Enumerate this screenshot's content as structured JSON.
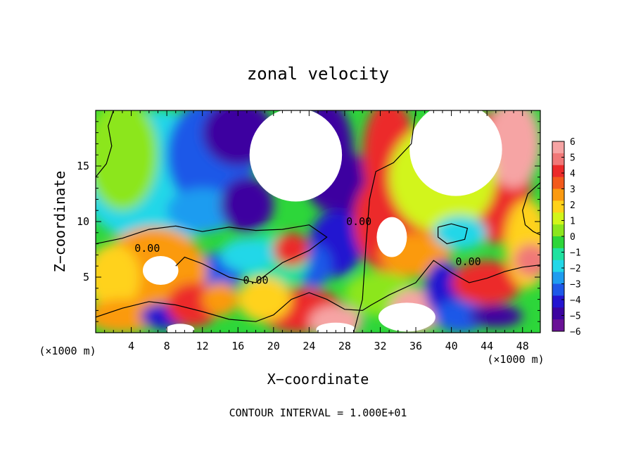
{
  "chart_data": {
    "type": "heatmap",
    "title": "zonal velocity",
    "xlabel": "X−coordinate",
    "ylabel": "Z−coordinate",
    "x_multiplier": "(×1000 m)",
    "x_multiplier_right": "(×1000 m)",
    "footer": "CONTOUR INTERVAL = 1.000E+01",
    "xlim": [
      0,
      50
    ],
    "ylim": [
      0,
      20
    ],
    "xticks": [
      4,
      8,
      12,
      16,
      20,
      24,
      28,
      32,
      36,
      40,
      44,
      48
    ],
    "xtick_labels": [
      "4",
      "8",
      "12",
      "16",
      "20",
      "24",
      "28",
      "32",
      "36",
      "40",
      "44",
      "48"
    ],
    "yticks": [
      5,
      10,
      15
    ],
    "ytick_labels": [
      "5",
      "10",
      "15"
    ],
    "colorbar": {
      "min": -6,
      "max": 6,
      "ticks": [
        6,
        5,
        4,
        3,
        2,
        1,
        0,
        -1,
        -2,
        -3,
        -4,
        -5,
        -6
      ],
      "tick_labels": [
        "6",
        "5",
        "4",
        "3",
        "2",
        "1",
        "0",
        "−1",
        "−2",
        "−3",
        "−4",
        "−5",
        "−6"
      ],
      "colors": [
        "#f6a4a4",
        "#f07878",
        "#ec2a2a",
        "#f35a1c",
        "#fb9a10",
        "#ffd21a",
        "#d2f51a",
        "#8ce61e",
        "#2dd63a",
        "#1fe2a0",
        "#22d7e8",
        "#1e9cf0",
        "#1e58e8",
        "#2414d0",
        "#3c04a0",
        "#6a1296"
      ]
    },
    "contour_labels": [
      {
        "text": "0.00",
        "x": 5.8,
        "y": 7.6
      },
      {
        "text": "0.00",
        "x": 18.0,
        "y": 4.7
      },
      {
        "text": "0.00",
        "x": 29.6,
        "y": 10.0
      },
      {
        "text": "0.00",
        "x": 41.9,
        "y": 6.4
      }
    ],
    "blobs": [
      {
        "x": 7,
        "y": 14,
        "rx": 9,
        "ry": 6,
        "v": -1.5
      },
      {
        "x": 3,
        "y": 16,
        "rx": 4,
        "ry": 5,
        "v": 0.5
      },
      {
        "x": 13,
        "y": 16,
        "rx": 5,
        "ry": 5,
        "v": -3.5
      },
      {
        "x": 16,
        "y": 18,
        "rx": 4,
        "ry": 3,
        "v": -5
      },
      {
        "x": 12,
        "y": 11,
        "rx": 4,
        "ry": 2,
        "v": -2.5
      },
      {
        "x": 17,
        "y": 11.5,
        "rx": 3,
        "ry": 2.5,
        "v": -4.5
      },
      {
        "x": 26,
        "y": 16,
        "rx": 3,
        "ry": 5,
        "v": -4.5
      },
      {
        "x": 29,
        "y": 12,
        "rx": 2.5,
        "ry": 4,
        "v": -5
      },
      {
        "x": 27,
        "y": 8,
        "rx": 3,
        "ry": 3,
        "v": -4
      },
      {
        "x": 24.5,
        "y": 6,
        "rx": 2,
        "ry": 2,
        "v": -3
      },
      {
        "x": 20,
        "y": 6.5,
        "rx": 4,
        "ry": 2.5,
        "v": -1
      },
      {
        "x": 14,
        "y": 5.5,
        "rx": 2.5,
        "ry": 1.8,
        "v": -3
      },
      {
        "x": 17,
        "y": 7,
        "rx": 3,
        "ry": 1.5,
        "v": -2
      },
      {
        "x": 6.5,
        "y": 6,
        "rx": 3.5,
        "ry": 2.5,
        "v": 6
      },
      {
        "x": 6.5,
        "y": 5.5,
        "rx": 6,
        "ry": 4,
        "v": 3
      },
      {
        "x": 2,
        "y": 5,
        "rx": 3,
        "ry": 3,
        "v": 2
      },
      {
        "x": 3,
        "y": 1.5,
        "rx": 4,
        "ry": 1.5,
        "v": 3
      },
      {
        "x": 8,
        "y": 1.5,
        "rx": 3,
        "ry": 1.2,
        "v": -4
      },
      {
        "x": 11,
        "y": 2.5,
        "rx": 3,
        "ry": 2,
        "v": 4
      },
      {
        "x": 14,
        "y": 3,
        "rx": 2,
        "ry": 1.5,
        "v": 3
      },
      {
        "x": 22,
        "y": 7.5,
        "rx": 2,
        "ry": 1.5,
        "v": 4
      },
      {
        "x": 23,
        "y": 2,
        "rx": 5,
        "ry": 2,
        "v": 4
      },
      {
        "x": 19,
        "y": 3,
        "rx": 3,
        "ry": 2,
        "v": 2
      },
      {
        "x": 27,
        "y": 1,
        "rx": 3,
        "ry": 1.5,
        "v": 5.5
      },
      {
        "x": 33.5,
        "y": 9,
        "rx": 2.2,
        "ry": 2.5,
        "v": 6.5
      },
      {
        "x": 34,
        "y": 10,
        "rx": 5,
        "ry": 5,
        "v": 4.5
      },
      {
        "x": 33,
        "y": 16,
        "rx": 3,
        "ry": 5,
        "v": 4
      },
      {
        "x": 36,
        "y": 7,
        "rx": 4,
        "ry": 2,
        "v": 3
      },
      {
        "x": 32,
        "y": 3.5,
        "rx": 4,
        "ry": 2,
        "v": 0.5
      },
      {
        "x": 36,
        "y": 2,
        "rx": 3,
        "ry": 2,
        "v": 6.5
      },
      {
        "x": 39,
        "y": 4,
        "rx": 2,
        "ry": 2.5,
        "v": -4
      },
      {
        "x": 41,
        "y": 1.5,
        "rx": 3,
        "ry": 1.5,
        "v": -3.5
      },
      {
        "x": 44,
        "y": 4.5,
        "rx": 4,
        "ry": 2,
        "v": 4
      },
      {
        "x": 45,
        "y": 1.5,
        "rx": 3,
        "ry": 1,
        "v": -5
      },
      {
        "x": 45,
        "y": 14,
        "rx": 4,
        "ry": 6,
        "v": 4.5
      },
      {
        "x": 47,
        "y": 17,
        "rx": 3,
        "ry": 4,
        "v": 6
      },
      {
        "x": 48.5,
        "y": 8,
        "rx": 2.5,
        "ry": 4,
        "v": 2
      },
      {
        "x": 49,
        "y": 6.5,
        "rx": 2,
        "ry": 1.5,
        "v": 5
      },
      {
        "x": 39,
        "y": 14,
        "rx": 6,
        "ry": 5,
        "v": 1
      },
      {
        "x": 41,
        "y": 9,
        "rx": 3,
        "ry": 1.5,
        "v": -1.5
      }
    ],
    "clip_regions": [
      {
        "x": 22.5,
        "y": 16,
        "rx": 5.2,
        "ry": 4.2
      },
      {
        "x": 40.5,
        "y": 16.5,
        "rx": 5.2,
        "ry": 4.2
      },
      {
        "x": 33.3,
        "y": 8.6,
        "rx": 1.7,
        "ry": 1.8
      },
      {
        "x": 7.3,
        "y": 5.6,
        "rx": 2.0,
        "ry": 1.3
      },
      {
        "x": 35,
        "y": 1.4,
        "rx": 3.2,
        "ry": 1.3
      },
      {
        "x": 9.5,
        "y": 0.3,
        "rx": 1.6,
        "ry": 0.5
      },
      {
        "x": 27,
        "y": 0.3,
        "rx": 2.2,
        "ry": 0.6
      }
    ]
  }
}
